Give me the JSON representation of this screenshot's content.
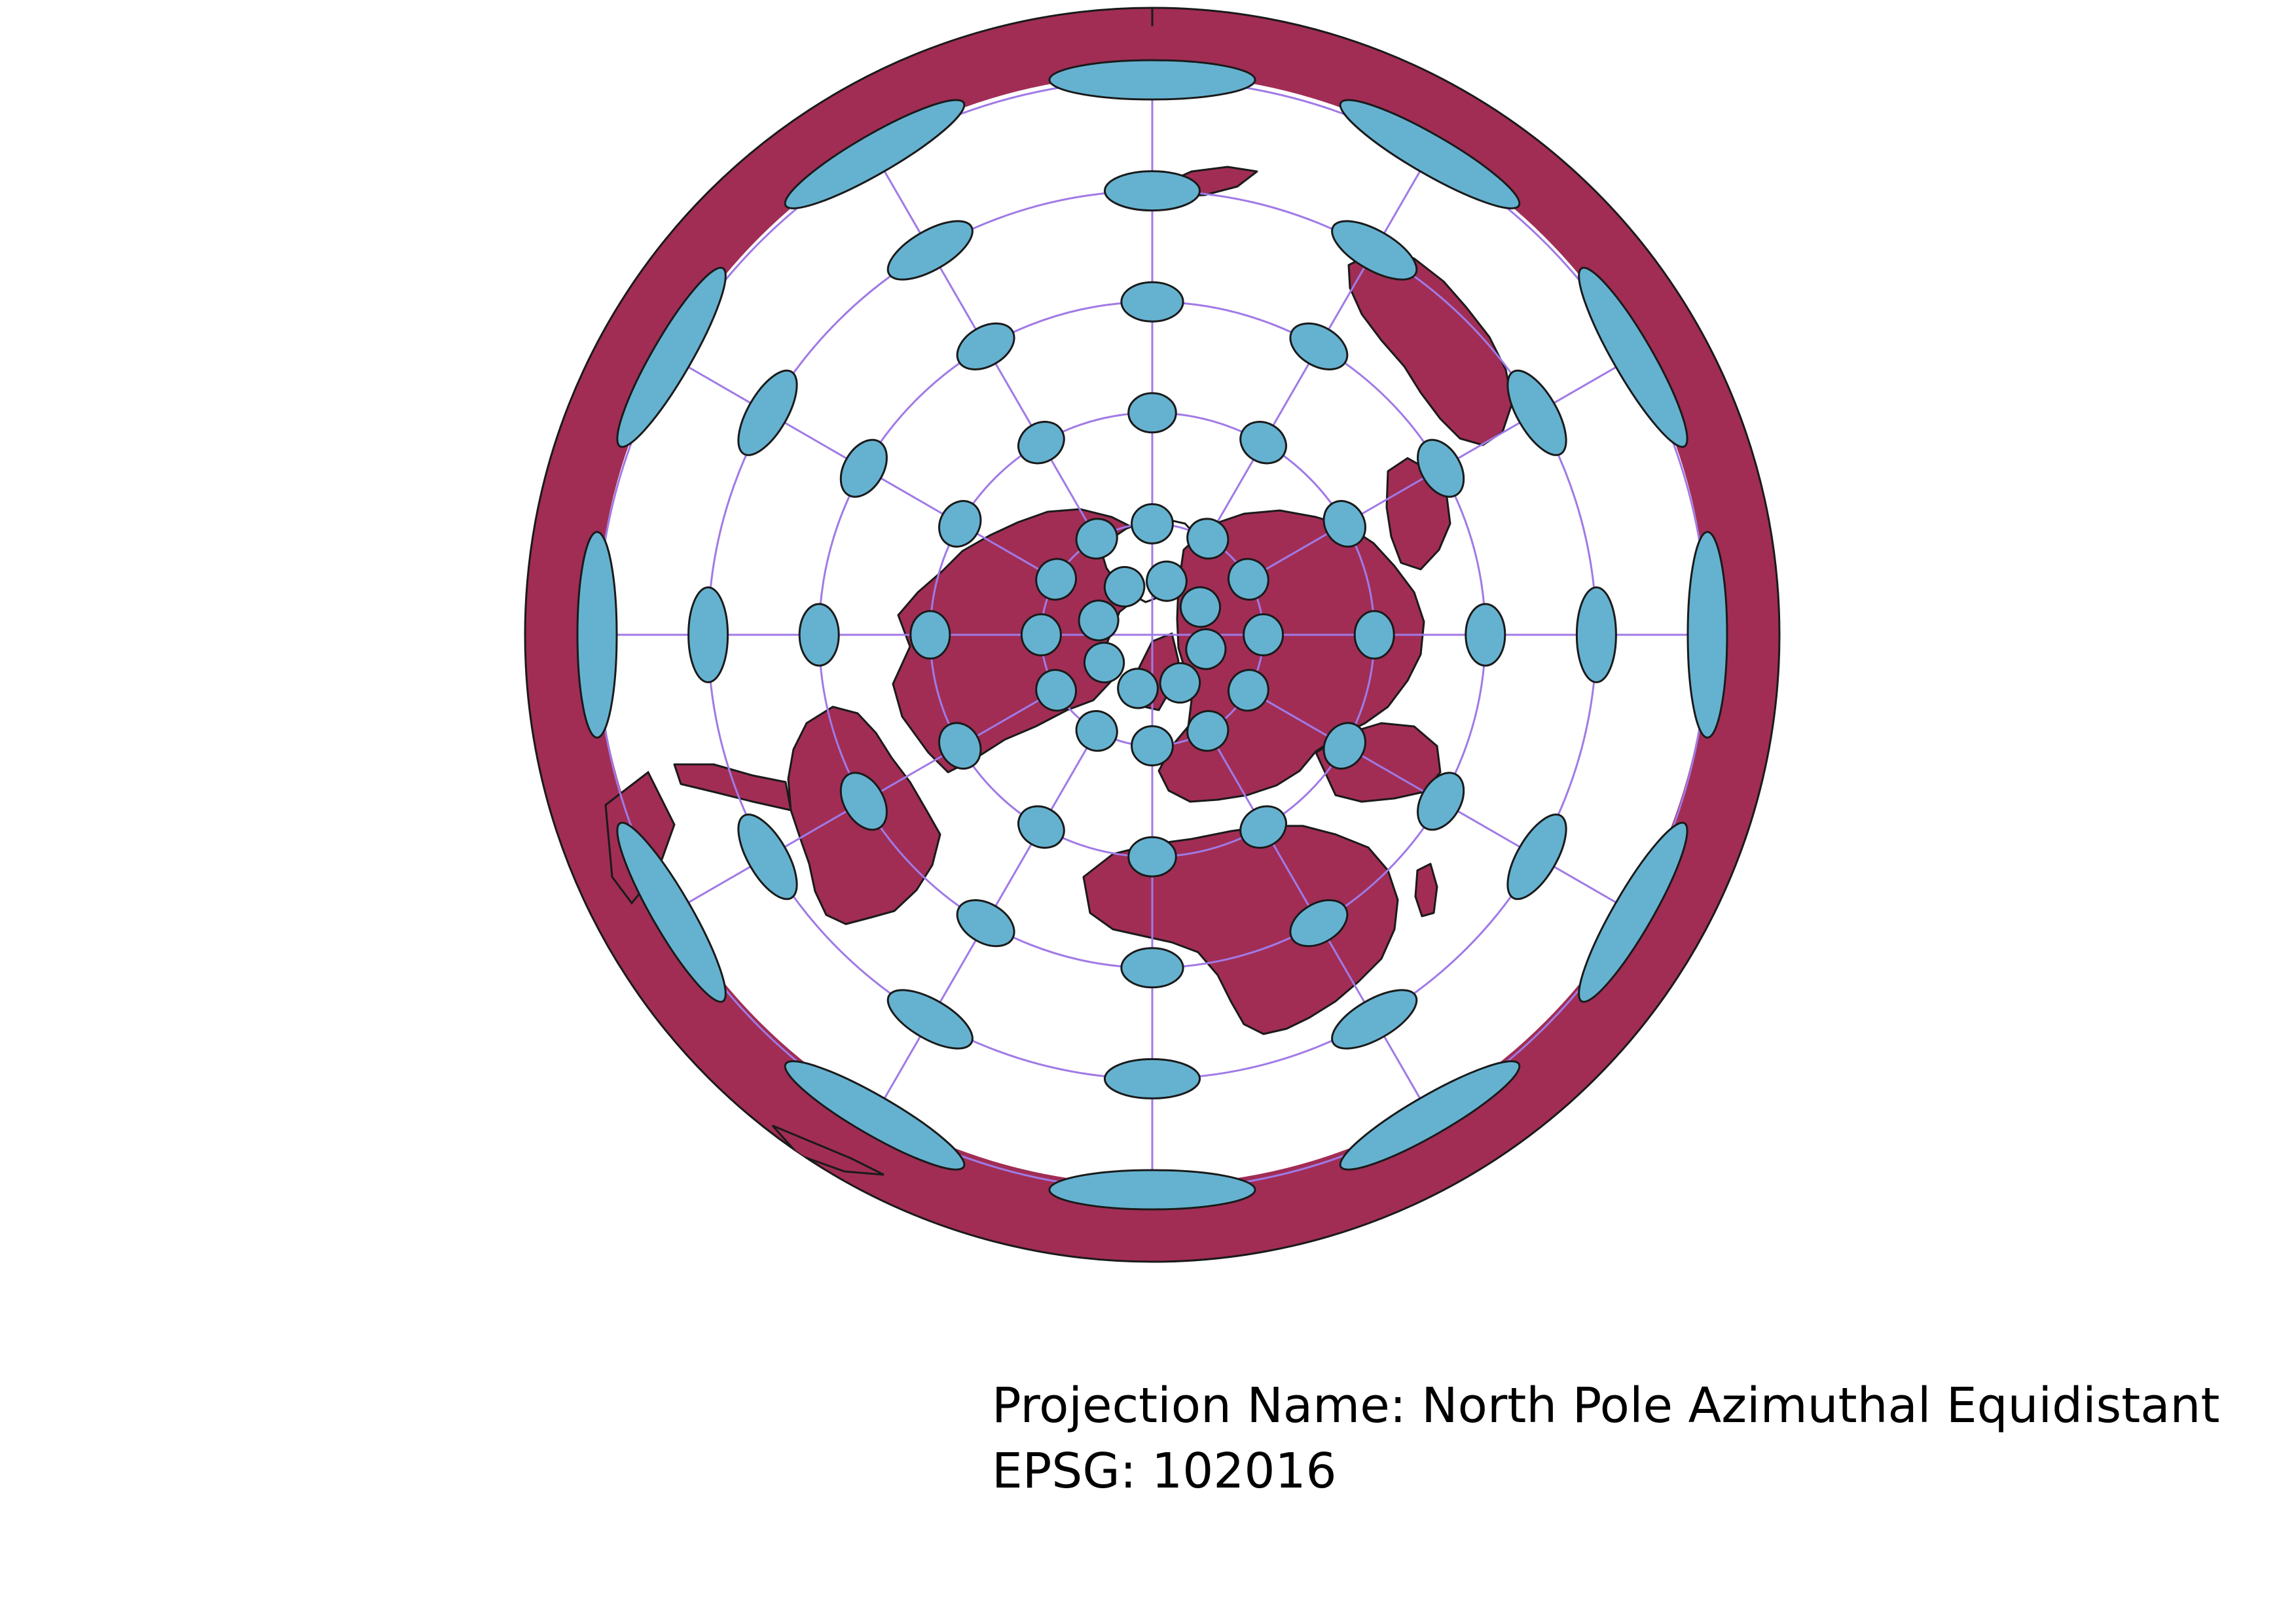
{
  "caption": {
    "projection_line": "Projection Name: North Pole Azimuthal Equidistant",
    "epsg_line": "EPSG: 102016"
  },
  "map": {
    "projection": "North Pole Azimuthal Equidistant",
    "epsg": "102016",
    "graticule": {
      "latitudes_deg": [
        60,
        30,
        0,
        -30,
        -60
      ],
      "meridian_step_deg": 30
    },
    "tissot_indicatrix": {
      "latitudes_deg": [
        60,
        30,
        0,
        -30,
        -60
      ],
      "meridian_step_deg": 30,
      "center_lat_deg": 75,
      "center_count": 8
    },
    "colors": {
      "land": "#a12d55",
      "ocean": "#ffffff",
      "indicatrix_fill": "#65b2d0",
      "graticule": "#a07ae6",
      "outline": "#1a1a1a"
    }
  }
}
